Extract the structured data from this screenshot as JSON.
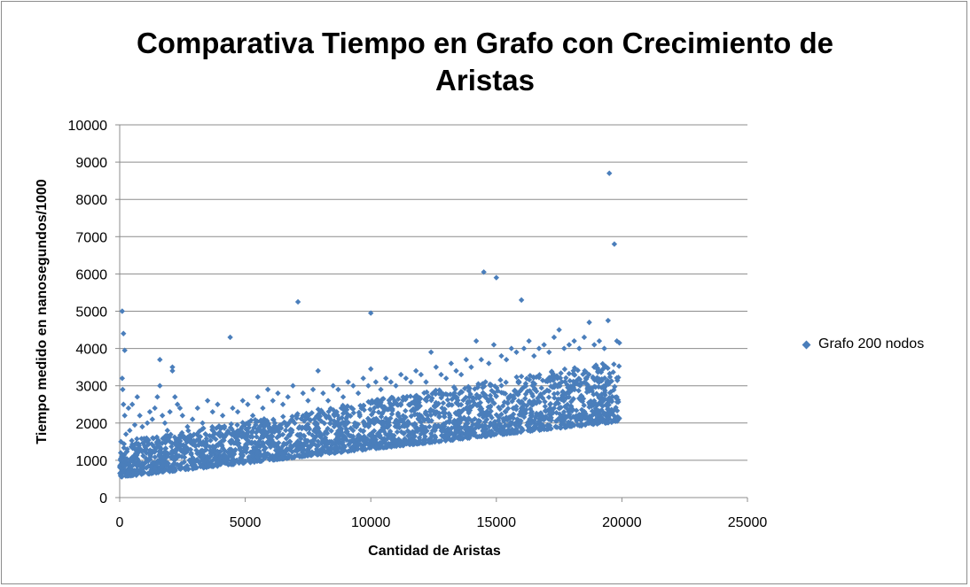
{
  "chart_data": {
    "type": "scatter",
    "title_lines": [
      "Comparativa Tiempo en Grafo con Crecimiento de",
      "Aristas"
    ],
    "xlabel": "Cantidad de Aristas",
    "ylabel": "Tiempo medido en nanosegundos/1000",
    "xlim": [
      0,
      25000
    ],
    "ylim": [
      0,
      10000
    ],
    "x_ticks": [
      0,
      5000,
      10000,
      15000,
      20000,
      25000
    ],
    "y_ticks": [
      0,
      1000,
      2000,
      3000,
      4000,
      5000,
      6000,
      7000,
      8000,
      9000,
      10000
    ],
    "grid": true,
    "legend_position": "right",
    "series": [
      {
        "name": "Grafo 200 nodos",
        "color": "#4a7ebb",
        "points": [
          [
            10,
            650
          ],
          [
            20,
            800
          ],
          [
            30,
            1000
          ],
          [
            40,
            1200
          ],
          [
            50,
            1500
          ],
          [
            60,
            900
          ],
          [
            80,
            1100
          ],
          [
            100,
            3200
          ],
          [
            120,
            2900
          ],
          [
            150,
            2500
          ],
          [
            100,
            5000
          ],
          [
            150,
            4400
          ],
          [
            200,
            3950
          ],
          [
            200,
            2200
          ],
          [
            250,
            1700
          ],
          [
            300,
            1300
          ],
          [
            350,
            2400
          ],
          [
            400,
            1800
          ],
          [
            500,
            2500
          ],
          [
            600,
            1950
          ],
          [
            700,
            2700
          ],
          [
            800,
            2200
          ],
          [
            900,
            1900
          ],
          [
            1000,
            1500
          ],
          [
            1100,
            2000
          ],
          [
            1200,
            2300
          ],
          [
            1300,
            2100
          ],
          [
            1400,
            2400
          ],
          [
            1500,
            2700
          ],
          [
            1600,
            3700
          ],
          [
            1600,
            3000
          ],
          [
            1700,
            2200
          ],
          [
            1800,
            2000
          ],
          [
            1900,
            1800
          ],
          [
            2000,
            2300
          ],
          [
            2100,
            3500
          ],
          [
            2100,
            3400
          ],
          [
            2200,
            2700
          ],
          [
            2300,
            2500
          ],
          [
            2400,
            2400
          ],
          [
            2500,
            2200
          ],
          [
            2700,
            1900
          ],
          [
            2900,
            2100
          ],
          [
            3100,
            2400
          ],
          [
            3300,
            2000
          ],
          [
            3500,
            2600
          ],
          [
            3700,
            2300
          ],
          [
            3900,
            2500
          ],
          [
            4100,
            2200
          ],
          [
            4400,
            4300
          ],
          [
            4500,
            2400
          ],
          [
            4700,
            2300
          ],
          [
            4900,
            2600
          ],
          [
            5100,
            2500
          ],
          [
            5300,
            2200
          ],
          [
            5500,
            2700
          ],
          [
            5700,
            2400
          ],
          [
            5900,
            2900
          ],
          [
            6100,
            2600
          ],
          [
            6300,
            2800
          ],
          [
            6500,
            2500
          ],
          [
            6700,
            2700
          ],
          [
            6900,
            3000
          ],
          [
            7100,
            5250
          ],
          [
            7300,
            2800
          ],
          [
            7500,
            2600
          ],
          [
            7700,
            2900
          ],
          [
            7900,
            3400
          ],
          [
            8100,
            2800
          ],
          [
            8300,
            2600
          ],
          [
            8500,
            3000
          ],
          [
            8700,
            2900
          ],
          [
            8900,
            2700
          ],
          [
            9100,
            3100
          ],
          [
            9300,
            3000
          ],
          [
            9500,
            2800
          ],
          [
            9700,
            3200
          ],
          [
            9900,
            3000
          ],
          [
            10000,
            4950
          ],
          [
            10000,
            3450
          ],
          [
            10200,
            3100
          ],
          [
            10400,
            2900
          ],
          [
            10600,
            3200
          ],
          [
            10800,
            3100
          ],
          [
            11000,
            3000
          ],
          [
            11200,
            3300
          ],
          [
            11400,
            3200
          ],
          [
            11600,
            3100
          ],
          [
            11800,
            3400
          ],
          [
            12000,
            3300
          ],
          [
            12200,
            3100
          ],
          [
            12400,
            3900
          ],
          [
            12600,
            3500
          ],
          [
            12800,
            3300
          ],
          [
            13000,
            3200
          ],
          [
            13200,
            3600
          ],
          [
            13400,
            3400
          ],
          [
            13600,
            3300
          ],
          [
            13800,
            3700
          ],
          [
            14000,
            3500
          ],
          [
            14200,
            4200
          ],
          [
            14400,
            3700
          ],
          [
            14500,
            6050
          ],
          [
            14700,
            3600
          ],
          [
            14900,
            4100
          ],
          [
            15000,
            5900
          ],
          [
            15200,
            3800
          ],
          [
            15400,
            3700
          ],
          [
            15600,
            4000
          ],
          [
            15800,
            3900
          ],
          [
            16000,
            5300
          ],
          [
            16100,
            4000
          ],
          [
            16300,
            4200
          ],
          [
            16500,
            3800
          ],
          [
            16700,
            4000
          ],
          [
            16900,
            4100
          ],
          [
            17100,
            3900
          ],
          [
            17300,
            4300
          ],
          [
            17500,
            4500
          ],
          [
            17700,
            4000
          ],
          [
            17900,
            4100
          ],
          [
            18100,
            4200
          ],
          [
            18300,
            4000
          ],
          [
            18500,
            4300
          ],
          [
            18700,
            4700
          ],
          [
            18900,
            4100
          ],
          [
            19100,
            4200
          ],
          [
            19300,
            4000
          ],
          [
            19450,
            4750
          ],
          [
            19500,
            8700
          ],
          [
            19700,
            6800
          ],
          [
            19800,
            4200
          ],
          [
            19900,
            4150
          ]
        ]
      }
    ],
    "density_band": {
      "series": "Grafo 200 nodos",
      "lower_line": [
        [
          0,
          550
        ],
        [
          20000,
          2050
        ]
      ],
      "upper_line": [
        [
          0,
          1500
        ],
        [
          20000,
          3700
        ]
      ],
      "x_range": [
        0,
        19900
      ]
    }
  }
}
